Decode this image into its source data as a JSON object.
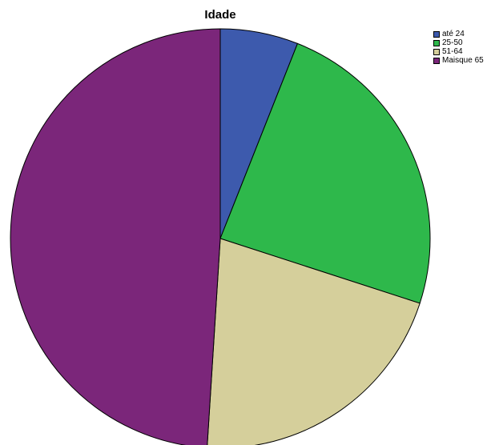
{
  "chart_data": {
    "type": "pie",
    "title": "Idade",
    "categories": [
      "até 24",
      "25-50",
      "51-64",
      "Maisque 65"
    ],
    "values": [
      6,
      24,
      21,
      49
    ],
    "colors": [
      "#3d5aad",
      "#2eb84b",
      "#d5cf9b",
      "#7b267a"
    ],
    "legend_position": "top-right"
  }
}
